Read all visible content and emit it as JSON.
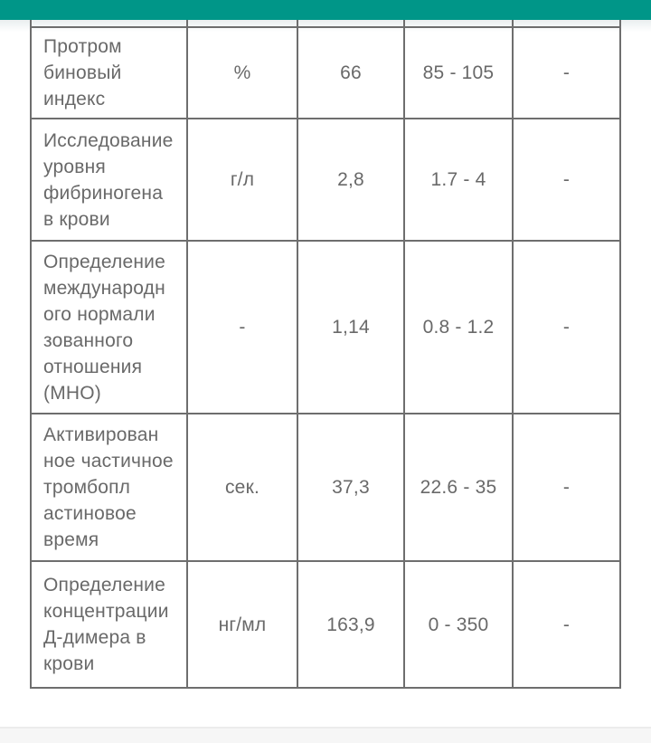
{
  "colors": {
    "appbar_teal": "#009688",
    "table_border": "#6e6e6e",
    "text_gray": "#696969",
    "bottom_bar_gray": "#f6f6f6"
  },
  "table": {
    "rows": [
      {
        "name": "Протром\nбиновый\nиндекс",
        "unit": "%",
        "result": "66",
        "reference": "85 - 105",
        "note": "-"
      },
      {
        "name": "Исследование\nуровня\nфибриногена\nв крови",
        "unit": "г/л",
        "result": "2,8",
        "reference": "1.7 - 4",
        "note": "-"
      },
      {
        "name": "Определение\nмеждународн\nого нормали\nзованного\nотношения\n(МНО)",
        "unit": "-",
        "result": "1,14",
        "reference": "0.8 - 1.2",
        "note": "-"
      },
      {
        "name": "Активирован\nное частичное\nтромбопл\nастиновое\nвремя",
        "unit": "сек.",
        "result": "37,3",
        "reference": "22.6 - 35",
        "note": "-"
      },
      {
        "name": "Определение\nконцентрации\nД-димера в\nкрови",
        "unit": "нг/мл",
        "result": "163,9",
        "reference": "0 - 350",
        "note": "-"
      }
    ]
  }
}
